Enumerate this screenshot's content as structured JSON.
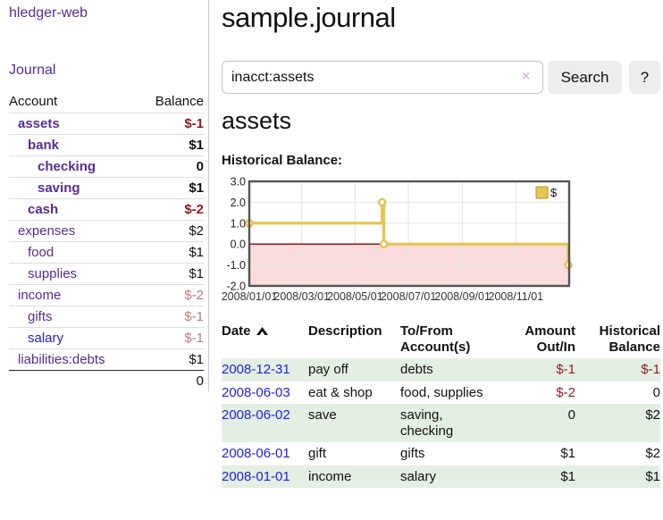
{
  "theme": {
    "link_purple": "#552d90",
    "link_blue": "#2020dd",
    "negative_strong": "#8f1a1a",
    "negative_soft": "#c27878",
    "row_stripe_green": "#e2efe2",
    "chart_gold": "#e7c44c",
    "chart_negative_fill": "#fadcdc",
    "chart_zero_line": "#8b0000",
    "button_gray": "#ededed"
  },
  "sidebar": {
    "app_title": "hledger-web",
    "journal_label": "Journal",
    "accounts_table": {
      "headers": {
        "account": "Account",
        "balance": "Balance"
      },
      "rows": [
        {
          "label": "assets",
          "balance": "$-1",
          "depth": 0,
          "bold": true,
          "label_color": "purple",
          "balance_color": "neg-strong"
        },
        {
          "label": "bank",
          "balance": "$1",
          "depth": 1,
          "bold": true,
          "label_color": "purple",
          "balance_color": ""
        },
        {
          "label": "checking",
          "balance": "0",
          "depth": 2,
          "bold": true,
          "label_color": "purple",
          "balance_color": ""
        },
        {
          "label": "saving",
          "balance": "$1",
          "depth": 2,
          "bold": true,
          "label_color": "purple",
          "balance_color": ""
        },
        {
          "label": "cash",
          "balance": "$-2",
          "depth": 1,
          "bold": true,
          "label_color": "purple",
          "balance_color": "neg-strong"
        },
        {
          "label": "expenses",
          "balance": "$2",
          "depth": 0,
          "bold": false,
          "label_color": "purple",
          "balance_color": ""
        },
        {
          "label": "food",
          "balance": "$1",
          "depth": 1,
          "bold": false,
          "label_color": "purple",
          "balance_color": ""
        },
        {
          "label": "supplies",
          "balance": "$1",
          "depth": 1,
          "bold": false,
          "label_color": "purple",
          "balance_color": ""
        },
        {
          "label": "income",
          "balance": "$-2",
          "depth": 0,
          "bold": false,
          "label_color": "purple",
          "balance_color": "neg-soft"
        },
        {
          "label": "gifts",
          "balance": "$-1",
          "depth": 1,
          "bold": false,
          "label_color": "purple",
          "balance_color": "neg-soft"
        },
        {
          "label": "salary",
          "balance": "$-1",
          "depth": 1,
          "bold": false,
          "label_color": "blue",
          "balance_color": "neg-soft"
        },
        {
          "label": "liabilities:debts",
          "balance": "$1",
          "depth": 0,
          "bold": false,
          "label_color": "purple",
          "balance_color": ""
        }
      ],
      "total": "0"
    }
  },
  "main": {
    "title": "sample.journal",
    "search": {
      "value": "inacct:assets",
      "clear_icon": "×",
      "button_label": "Search",
      "help_label": "?"
    },
    "account_heading": "assets",
    "section_label": "Historical Balance:"
  },
  "chart_data": {
    "type": "line",
    "step": true,
    "title": "Historical Balance:",
    "legend": [
      {
        "name": "$",
        "color": "#e7c44c"
      }
    ],
    "legend_position": "top-right",
    "series": [
      {
        "name": "$",
        "points": [
          {
            "date": "2008-01-01",
            "day": 0,
            "value": 1
          },
          {
            "date": "2008-06-01",
            "day": 152,
            "value": 2
          },
          {
            "date": "2008-06-03",
            "day": 154,
            "value": 0
          },
          {
            "date": "2008-12-31",
            "day": 365,
            "value": -1
          }
        ]
      }
    ],
    "xmax_days": 366,
    "ylim": [
      -2,
      3
    ],
    "yticks": [
      {
        "value": 3,
        "label": "3.0"
      },
      {
        "value": 2,
        "label": "2.0"
      },
      {
        "value": 1,
        "label": "1.0"
      },
      {
        "value": 0,
        "label": "0.0"
      },
      {
        "value": -1,
        "label": "-1.0"
      },
      {
        "value": -2,
        "label": "-2.0"
      }
    ],
    "xticks": [
      {
        "day": 0,
        "label": "2008/01/01"
      },
      {
        "day": 60,
        "label": "2008/03/01"
      },
      {
        "day": 121,
        "label": "2008/05/01"
      },
      {
        "day": 182,
        "label": "2008/07/01"
      },
      {
        "day": 244,
        "label": "2008/09/01"
      },
      {
        "day": 305,
        "label": "2008/11/01"
      }
    ],
    "grid": true,
    "negative_region_color": "#fadcdc",
    "zero_line_color": "#8b0000"
  },
  "register": {
    "headers": {
      "date": "Date",
      "description": "Description",
      "accounts": "To/From Account(s)",
      "amount": "Amount Out/In",
      "balance": "Historical Balance"
    },
    "sort": {
      "column": "date",
      "direction": "ascending"
    },
    "rows": [
      {
        "date": "2008-12-31",
        "description": "pay off",
        "accounts": "debts",
        "amount": "$-1",
        "balance": "$-1"
      },
      {
        "date": "2008-06-03",
        "description": "eat & shop",
        "accounts": "food, supplies",
        "amount": "$-2",
        "balance": "0"
      },
      {
        "date": "2008-06-02",
        "description": "save",
        "accounts": "saving, checking",
        "amount": "0",
        "balance": "$2"
      },
      {
        "date": "2008-06-01",
        "description": "gift",
        "accounts": "gifts",
        "amount": "$1",
        "balance": "$2"
      },
      {
        "date": "2008-01-01",
        "description": "income",
        "accounts": "salary",
        "amount": "$1",
        "balance": "$1"
      }
    ]
  }
}
